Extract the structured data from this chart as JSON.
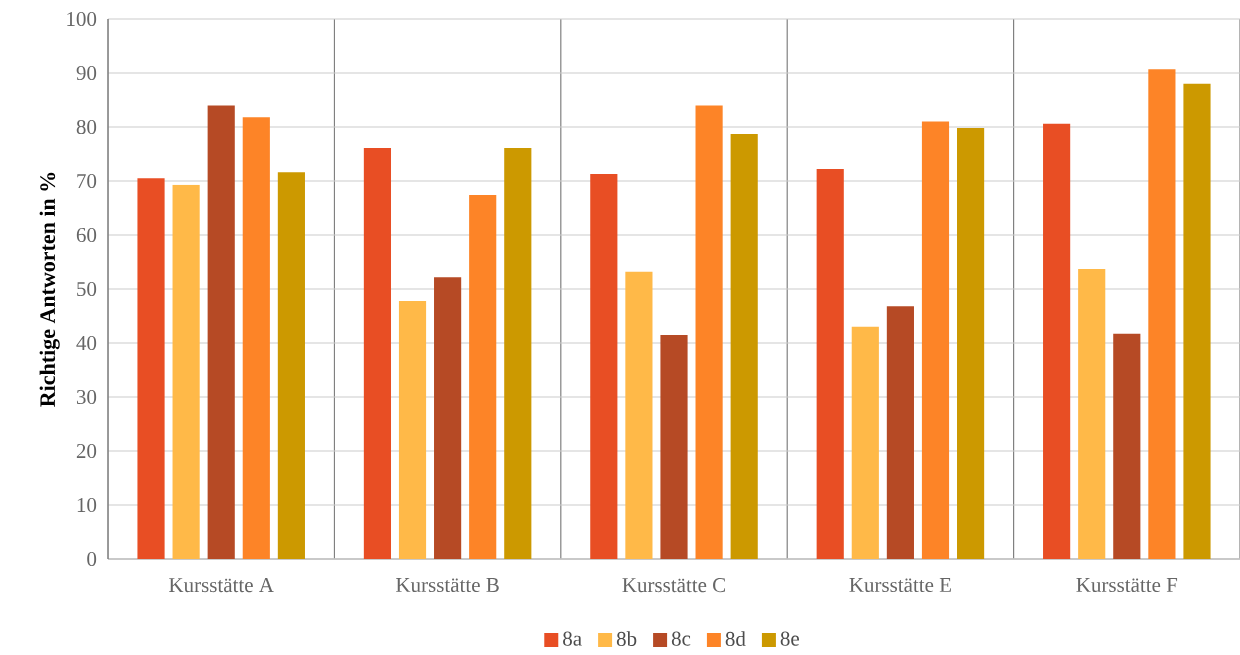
{
  "chart_data": {
    "type": "bar",
    "ylabel": "Richtige Antworten in %",
    "categories": [
      "Kursstätte A",
      "Kursstätte B",
      "Kursstätte C",
      "Kursstätte E",
      "Kursstätte F"
    ],
    "series": [
      {
        "name": "8a",
        "color": "#e84e24",
        "values": [
          70.5,
          76.1,
          71.3,
          72.2,
          80.6
        ]
      },
      {
        "name": "8b",
        "color": "#ffb948",
        "values": [
          69.3,
          47.8,
          53.2,
          43.0,
          53.7
        ]
      },
      {
        "name": "8c",
        "color": "#b64a25",
        "values": [
          84.0,
          52.2,
          41.5,
          46.8,
          41.7
        ]
      },
      {
        "name": "8d",
        "color": "#fd8427",
        "values": [
          81.8,
          67.4,
          84.0,
          81.0,
          90.7
        ]
      },
      {
        "name": "8e",
        "color": "#cc9900",
        "values": [
          71.6,
          76.1,
          78.7,
          79.8,
          88.0
        ]
      }
    ],
    "ylim": [
      0,
      100
    ],
    "yticks": [
      0,
      10,
      20,
      30,
      40,
      50,
      60,
      70,
      80,
      90,
      100
    ],
    "grid": true,
    "legend": "bottom"
  }
}
